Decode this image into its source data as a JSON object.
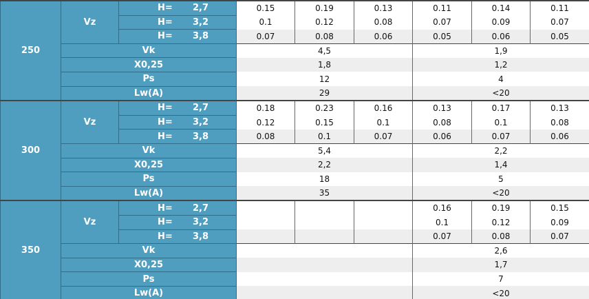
{
  "groups": [
    {
      "size": "250",
      "vz_label": "Vz",
      "h_rows": [
        {
          "h_label": "H=",
          "h": "2,7",
          "values": [
            0.15,
            0.19,
            0.13,
            0.11,
            0.14,
            0.11
          ]
        },
        {
          "h_label": "H=",
          "h": "3,2",
          "values": [
            0.1,
            0.12,
            0.08,
            0.07,
            0.09,
            0.07
          ]
        },
        {
          "h_label": "H=",
          "h": "3,8",
          "values": [
            0.07,
            0.08,
            0.06,
            0.05,
            0.06,
            0.05
          ]
        }
      ],
      "params": [
        {
          "label": "Vk",
          "left": "4,5",
          "right": "1,9"
        },
        {
          "label": "X0,25",
          "left": "1,8",
          "right": "1,2"
        },
        {
          "label": "Ps",
          "left": 12,
          "right": 4
        },
        {
          "label": "Lw(A)",
          "left": 29,
          "right": "<20"
        }
      ]
    },
    {
      "size": "300",
      "vz_label": "Vz",
      "h_rows": [
        {
          "h_label": "H=",
          "h": "2,7",
          "values": [
            0.18,
            0.23,
            0.16,
            0.13,
            0.17,
            0.13
          ]
        },
        {
          "h_label": "H=",
          "h": "3,2",
          "values": [
            0.12,
            0.15,
            0.1,
            0.08,
            0.1,
            0.08
          ]
        },
        {
          "h_label": "H=",
          "h": "3,8",
          "values": [
            0.08,
            0.1,
            0.07,
            0.06,
            0.07,
            0.06
          ]
        }
      ],
      "params": [
        {
          "label": "Vk",
          "left": "5,4",
          "right": "2,2"
        },
        {
          "label": "X0,25",
          "left": "2,2",
          "right": "1,4"
        },
        {
          "label": "Ps",
          "left": 18,
          "right": 5
        },
        {
          "label": "Lw(A)",
          "left": 35,
          "right": "<20"
        }
      ]
    },
    {
      "size": "350",
      "vz_label": "Vz",
      "h_rows": [
        {
          "h_label": "H=",
          "h": "2,7",
          "values": [
            null,
            null,
            null,
            0.16,
            0.19,
            0.15
          ]
        },
        {
          "h_label": "H=",
          "h": "3,2",
          "values": [
            null,
            null,
            null,
            0.1,
            0.12,
            0.09
          ]
        },
        {
          "h_label": "H=",
          "h": "3,8",
          "values": [
            null,
            null,
            null,
            0.07,
            0.08,
            0.07
          ]
        }
      ],
      "params": [
        {
          "label": "Vk",
          "left": null,
          "right": "2,6"
        },
        {
          "label": "X0,25",
          "left": null,
          "right": "1,7"
        },
        {
          "label": "Ps",
          "left": null,
          "right": 7
        },
        {
          "label": "Lw(A)",
          "left": null,
          "right": "<20"
        }
      ]
    }
  ]
}
